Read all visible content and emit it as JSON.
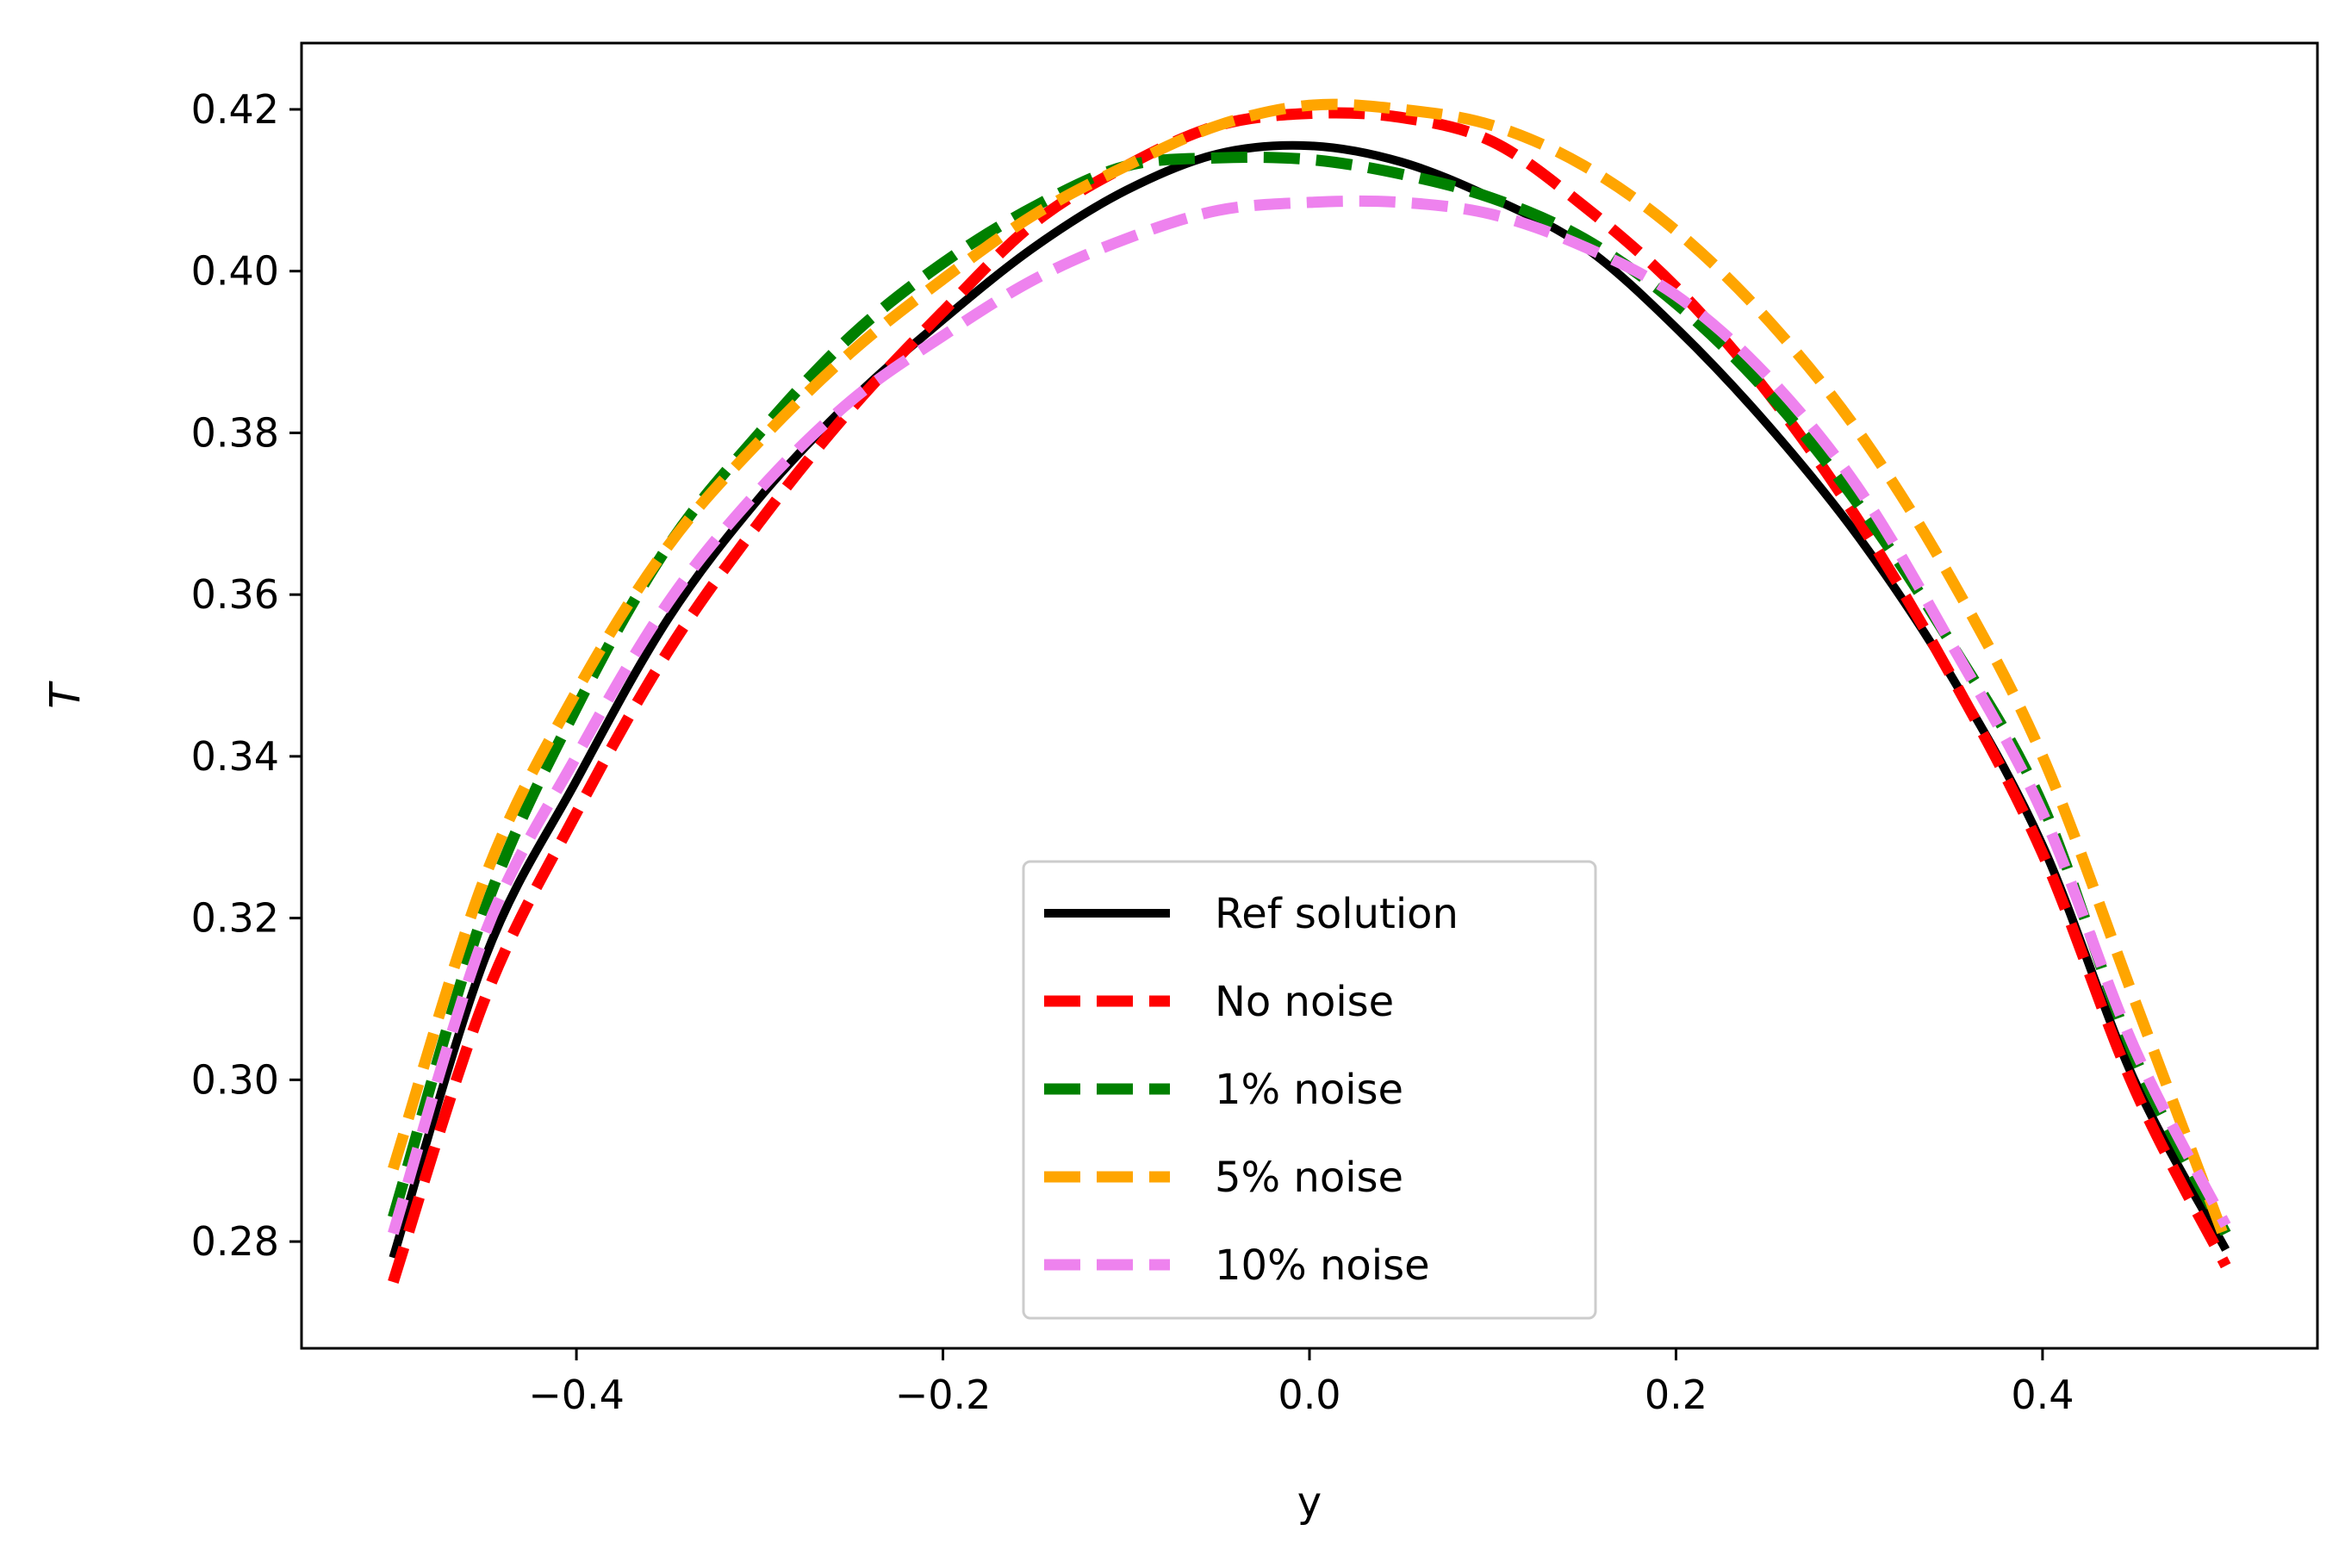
{
  "chart_data": {
    "type": "line",
    "title": "",
    "xlabel": "y",
    "ylabel": "T",
    "xlim": [
      -0.55,
      0.55
    ],
    "ylim": [
      0.2668,
      0.4282
    ],
    "xticks": [
      -0.4,
      -0.2,
      0.0,
      0.2,
      0.4
    ],
    "xtick_labels": [
      "−0.4",
      "−0.2",
      "0.0",
      "0.2",
      "0.4"
    ],
    "yticks": [
      0.28,
      0.3,
      0.32,
      0.34,
      0.36,
      0.38,
      0.4,
      0.42
    ],
    "ytick_labels": [
      "0.28",
      "0.30",
      "0.32",
      "0.34",
      "0.36",
      "0.38",
      "0.40",
      "0.42"
    ],
    "grid": false,
    "legend_position": "lower-center",
    "series": [
      {
        "name": "Ref solution",
        "color": "#000000",
        "dashed": false,
        "x": [
          -0.5,
          -0.45,
          -0.4,
          -0.35,
          -0.3,
          -0.25,
          -0.2,
          -0.15,
          -0.1,
          -0.05,
          0.0,
          0.05,
          0.1,
          0.15,
          0.2,
          0.25,
          0.3,
          0.35,
          0.4,
          0.45,
          0.5
        ],
        "y": [
          0.278,
          0.315,
          0.337,
          0.357,
          0.372,
          0.384,
          0.394,
          0.403,
          0.41,
          0.4145,
          0.4155,
          0.4135,
          0.409,
          0.403,
          0.393,
          0.381,
          0.367,
          0.35,
          0.329,
          0.3,
          0.279
        ]
      },
      {
        "name": "No noise",
        "color": "#ff0000",
        "dashed": true,
        "x": [
          -0.5,
          -0.45,
          -0.4,
          -0.35,
          -0.3,
          -0.25,
          -0.2,
          -0.15,
          -0.1,
          -0.05,
          0.0,
          0.05,
          0.1,
          0.15,
          0.2,
          0.25,
          0.3,
          0.35,
          0.4,
          0.45,
          0.5
        ],
        "y": [
          0.275,
          0.31,
          0.333,
          0.353,
          0.369,
          0.383,
          0.395,
          0.406,
          0.413,
          0.418,
          0.4195,
          0.419,
          0.416,
          0.408,
          0.398,
          0.385,
          0.369,
          0.35,
          0.328,
          0.299,
          0.277
        ]
      },
      {
        "name": "1% noise",
        "color": "#008000",
        "dashed": true,
        "x": [
          -0.5,
          -0.45,
          -0.4,
          -0.35,
          -0.3,
          -0.25,
          -0.2,
          -0.15,
          -0.1,
          -0.05,
          0.0,
          0.05,
          0.1,
          0.15,
          0.2,
          0.25,
          0.3,
          0.35,
          0.4,
          0.45,
          0.5
        ],
        "y": [
          0.283,
          0.321,
          0.346,
          0.366,
          0.38,
          0.392,
          0.401,
          0.408,
          0.413,
          0.414,
          0.4138,
          0.412,
          0.409,
          0.404,
          0.396,
          0.385,
          0.371,
          0.354,
          0.334,
          0.303,
          0.281
        ]
      },
      {
        "name": "5% noise",
        "color": "#ffa500",
        "dashed": true,
        "x": [
          -0.5,
          -0.45,
          -0.4,
          -0.35,
          -0.3,
          -0.25,
          -0.2,
          -0.15,
          -0.1,
          -0.05,
          0.0,
          0.05,
          0.1,
          0.15,
          0.2,
          0.25,
          0.3,
          0.35,
          0.4,
          0.45,
          0.5
        ],
        "y": [
          0.289,
          0.325,
          0.348,
          0.366,
          0.379,
          0.39,
          0.399,
          0.407,
          0.413,
          0.418,
          0.4205,
          0.42,
          0.418,
          0.413,
          0.405,
          0.394,
          0.38,
          0.362,
          0.34,
          0.31,
          0.28
        ]
      },
      {
        "name": "10% noise",
        "color": "#ee82ee",
        "dashed": true,
        "x": [
          -0.5,
          -0.45,
          -0.4,
          -0.35,
          -0.3,
          -0.25,
          -0.2,
          -0.15,
          -0.1,
          -0.05,
          0.0,
          0.05,
          0.1,
          0.15,
          0.2,
          0.25,
          0.3,
          0.35,
          0.4,
          0.45,
          0.5
        ],
        "y": [
          0.281,
          0.318,
          0.34,
          0.359,
          0.373,
          0.384,
          0.392,
          0.399,
          0.404,
          0.4075,
          0.4085,
          0.4085,
          0.407,
          0.403,
          0.397,
          0.387,
          0.373,
          0.354,
          0.333,
          0.304,
          0.282
        ]
      }
    ]
  }
}
